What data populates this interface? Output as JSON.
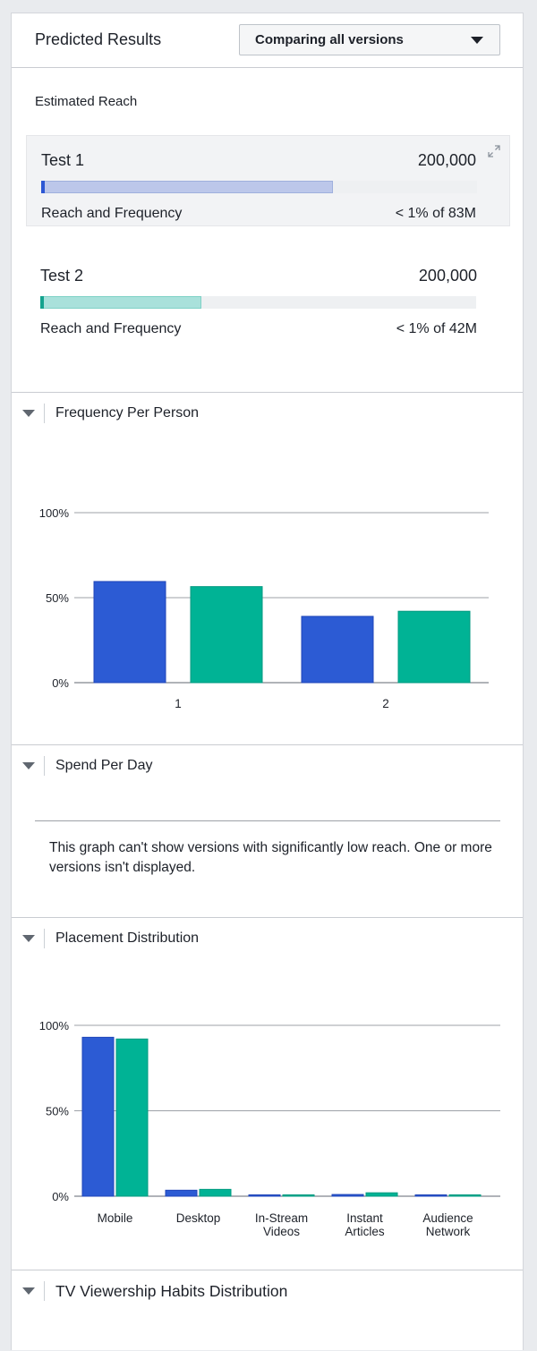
{
  "header": {
    "title": "Predicted Results",
    "dropdown_label": "Comparing all versions"
  },
  "estimated_reach": {
    "title": "Estimated Reach",
    "tests": [
      {
        "name": "Test 1",
        "value": "200,000",
        "subtitle": "Reach and Frequency",
        "percent_text": "< 1% of 83M",
        "bar_fraction": 0.67,
        "bar_color": "#bcc7ea",
        "bar_border": "#9fb0dd",
        "cap_color": "#2c57d4",
        "selected": true
      },
      {
        "name": "Test 2",
        "value": "200,000",
        "subtitle": "Reach and Frequency",
        "percent_text": "< 1% of 42M",
        "bar_fraction": 0.37,
        "bar_color": "#a9e1db",
        "bar_border": "#7fd1c6",
        "cap_color": "#14a38e",
        "selected": false
      }
    ]
  },
  "sections": {
    "frequency": {
      "title": "Frequency Per Person"
    },
    "spend": {
      "title": "Spend Per Day",
      "note": "This graph can't show versions with significantly low reach. One or more versions isn't displayed."
    },
    "placement": {
      "title": "Placement Distribution"
    },
    "tv": {
      "title": "TV Viewership Habits Distribution"
    }
  },
  "colors": {
    "series1": "#2c5bd4",
    "series2": "#00b395"
  },
  "chart_data": [
    {
      "type": "bar",
      "title": "Frequency Per Person",
      "categories": [
        "1",
        "2"
      ],
      "series": [
        {
          "values": [
            59.5,
            39
          ]
        },
        {
          "values": [
            56.5,
            42
          ]
        }
      ],
      "ylim": [
        0,
        100
      ],
      "yticks": [
        "0%",
        "50%",
        "100%"
      ],
      "grid": true
    },
    {
      "type": "bar",
      "title": "Placement Distribution",
      "categories": [
        "Mobile",
        "Desktop",
        "In-Stream Videos",
        "Instant Articles",
        "Audience Network"
      ],
      "series": [
        {
          "values": [
            93,
            3.5,
            0.6,
            1,
            0.5
          ]
        },
        {
          "values": [
            92,
            4,
            0.5,
            2,
            0.5
          ]
        }
      ],
      "ylim": [
        0,
        100
      ],
      "yticks": [
        "0%",
        "50%",
        "100%"
      ],
      "grid": true
    }
  ]
}
